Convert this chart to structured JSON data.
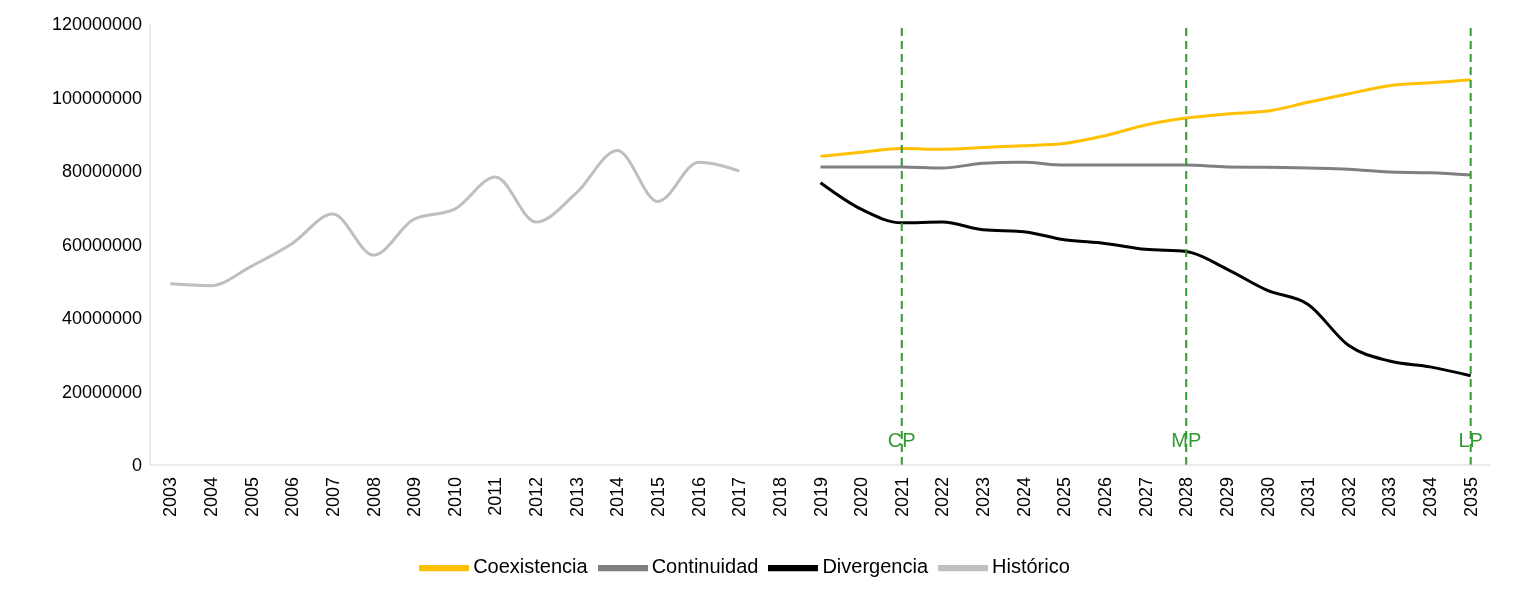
{
  "chart_data": {
    "type": "line",
    "categories": [
      "2003",
      "2004",
      "2005",
      "2006",
      "2007",
      "2008",
      "2009",
      "2010",
      "2011",
      "2012",
      "2013",
      "2014",
      "2015",
      "2016",
      "2017",
      "2018",
      "2019",
      "2020",
      "2021",
      "2022",
      "2023",
      "2024",
      "2025",
      "2026",
      "2027",
      "2028",
      "2029",
      "2030",
      "2031",
      "2032",
      "2033",
      "2034",
      "2035"
    ],
    "series": [
      {
        "name": "Histórico",
        "color": "#bfbfbf",
        "values": [
          49300000,
          48800000,
          54100000,
          60300000,
          68300000,
          57100000,
          66900000,
          69600000,
          78400000,
          66100000,
          74100000,
          85600000,
          71700000,
          82400000,
          80000000,
          null,
          null,
          null,
          null,
          null,
          null,
          null,
          null,
          null,
          null,
          null,
          null,
          null,
          null,
          null,
          null,
          null,
          null
        ]
      },
      {
        "name": "Continuidad",
        "color": "#808080",
        "values": [
          null,
          null,
          null,
          null,
          null,
          null,
          null,
          null,
          null,
          null,
          null,
          null,
          null,
          null,
          null,
          null,
          81100000,
          81100000,
          81100000,
          80800000,
          82100000,
          82400000,
          81600000,
          81600000,
          81600000,
          81600000,
          81100000,
          81000000,
          80800000,
          80500000,
          79700000,
          79500000,
          78900000
        ]
      },
      {
        "name": "Coexistencia",
        "color": "#ffc000",
        "values": [
          null,
          null,
          null,
          null,
          null,
          null,
          null,
          null,
          null,
          null,
          null,
          null,
          null,
          null,
          null,
          null,
          84000000,
          85100000,
          86100000,
          85900000,
          86400000,
          86900000,
          87500000,
          89600000,
          92500000,
          94400000,
          95500000,
          96300000,
          98700000,
          101000000,
          103200000,
          104000000,
          104800000
        ]
      },
      {
        "name": "Divergencia",
        "color": "#000000",
        "values": [
          null,
          null,
          null,
          null,
          null,
          null,
          null,
          null,
          null,
          null,
          null,
          null,
          null,
          null,
          null,
          null,
          76800000,
          69600000,
          65900000,
          66100000,
          64000000,
          63500000,
          61300000,
          60300000,
          58700000,
          58100000,
          53300000,
          47500000,
          43700000,
          32500000,
          28300000,
          26700000,
          24300000
        ]
      }
    ],
    "ylim": [
      0,
      120000000
    ],
    "yticks": [
      0,
      20000000,
      40000000,
      60000000,
      80000000,
      100000000,
      120000000
    ],
    "ref_lines": [
      {
        "axis": "x",
        "value": "2021",
        "label": "CP",
        "color": "#339933",
        "line_style": "dashed"
      },
      {
        "axis": "x",
        "value": "2028",
        "label": "MP",
        "color": "#339933",
        "line_style": "dashed"
      },
      {
        "axis": "x",
        "value": "2035",
        "label": "LP",
        "color": "#339933",
        "line_style": "dashed"
      }
    ],
    "grid": false,
    "legend": "bottom",
    "marker": "none",
    "line_style": "solid"
  }
}
